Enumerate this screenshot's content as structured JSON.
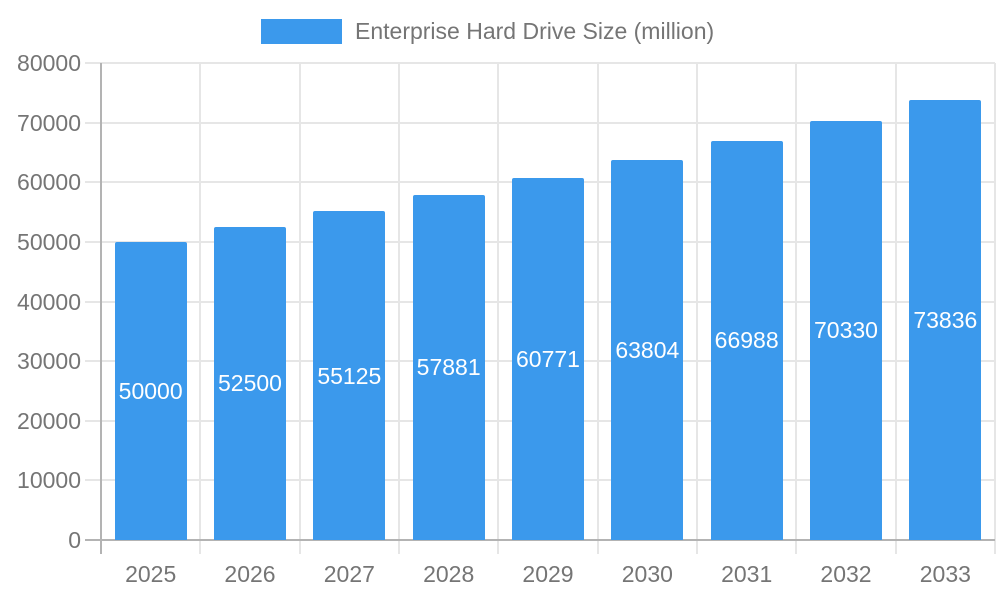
{
  "legend": {
    "label": "Enterprise Hard Drive Size (million)"
  },
  "chart_data": {
    "type": "bar",
    "title": "Enterprise Hard Drive Size (million)",
    "series_name": "Enterprise Hard Drive Size (million)",
    "categories": [
      "2025",
      "2026",
      "2027",
      "2028",
      "2029",
      "2030",
      "2031",
      "2032",
      "2033"
    ],
    "values": [
      50000,
      52500,
      55125,
      57881,
      60771,
      63804,
      66988,
      70330,
      73836
    ],
    "xlabel": "",
    "ylabel": "",
    "ylim": [
      0,
      80000
    ],
    "yticks": [
      0,
      10000,
      20000,
      30000,
      40000,
      50000,
      60000,
      70000,
      80000
    ],
    "grid": true,
    "legend_position": "top",
    "bar_labels_shown": true,
    "bar_color": "#3B99EC",
    "bar_label_color": "#FFFFFF",
    "axis_text_color": "#757575",
    "grid_color": "#E6E6E6",
    "axis_line_color": "#B3B3B3"
  }
}
